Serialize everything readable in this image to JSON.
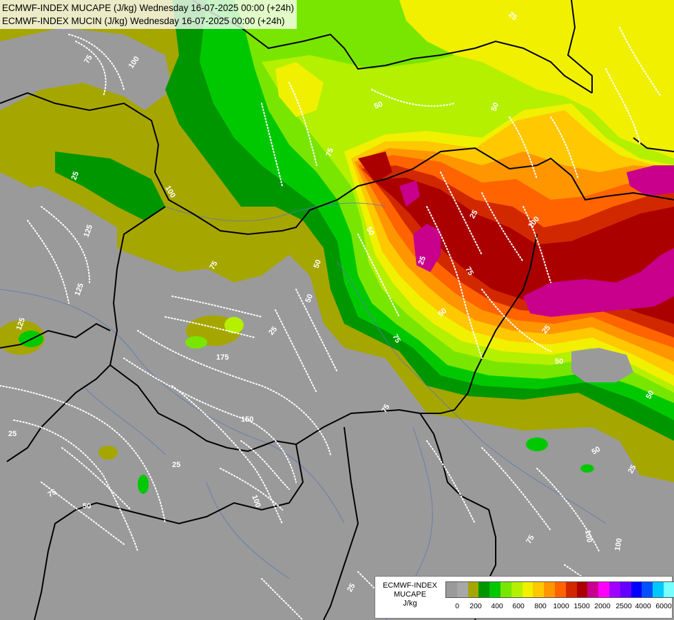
{
  "header": {
    "line1": "ECMWF-INDEX MUCAPE (J/kg) Wednesday 16-07-2025 00:00 (+24h)",
    "line2": "ECMWF-INDEX MUCIN (J/kg) Wednesday 16-07-2025 00:00 (+24h)"
  },
  "legend": {
    "line1": "ECMWF-INDEX",
    "line2": "MUCAPE",
    "line3": "J/kg",
    "swatch_colors": [
      "#9a9a9a",
      "#a8a8a8",
      "#a6a600",
      "#009600",
      "#00c800",
      "#78e600",
      "#b4f000",
      "#f0f000",
      "#ffc800",
      "#ff9600",
      "#ff6400",
      "#d22800",
      "#aa0000",
      "#c8008c",
      "#ff00ff",
      "#a000ff",
      "#6400ff",
      "#0000ff",
      "#0050ff",
      "#00c8ff",
      "#78ffff",
      "#ffffff"
    ],
    "tick_labels": [
      "0",
      "200",
      "400",
      "600",
      "800",
      "1000",
      "1500",
      "2000",
      "2500",
      "4000",
      "6000"
    ]
  },
  "map": {
    "contour_labels": [
      "75",
      "100",
      "25",
      "125",
      "100",
      "50",
      "50",
      "75",
      "50",
      "50",
      "25",
      "75",
      "25",
      "100",
      "50",
      "50",
      "75",
      "25",
      "50",
      "25",
      "25",
      "75",
      "125",
      "175",
      "150",
      "25",
      "50",
      "25",
      "50",
      "75",
      "100",
      "25",
      "50",
      "75",
      "100",
      "100",
      "25",
      "75",
      "125"
    ]
  }
}
